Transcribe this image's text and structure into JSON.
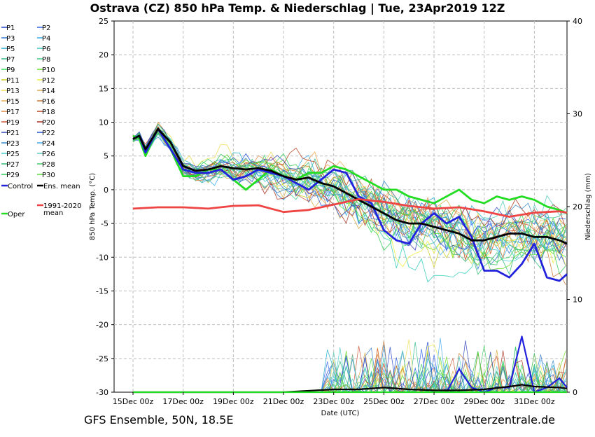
{
  "chart_data": {
    "type": "line",
    "title": "Ostrava  (CZ)  850 hPa Temp. & Niederschlag | Tue, 23Apr2019 12Z",
    "xlabel": "Date (UTC)",
    "ylabel": "850 hPa Temp. (°C)",
    "y2label": "Niederschlag (mm)",
    "ylim": [
      -30,
      25
    ],
    "y2lim": [
      0,
      40
    ],
    "xlim": [
      0,
      17.3
    ],
    "grid": true,
    "legend_position": "left",
    "x_tick_labels": [
      "15Dec 00z",
      "17Dec 00z",
      "19Dec 00z",
      "21Dec 00z",
      "23Dec 00z",
      "25Dec 00z",
      "27Dec 00z",
      "29Dec 00z",
      "31Dec 00z"
    ],
    "x_tick_positions_days": [
      0,
      2,
      4,
      6,
      8,
      10,
      12,
      14,
      16
    ],
    "y_ticks": [
      25,
      20,
      15,
      10,
      5,
      0,
      -5,
      -10,
      -15,
      -20,
      -25,
      -30
    ],
    "y2_ticks": [
      40,
      30,
      20,
      10,
      0
    ],
    "footer_left": "GFS Ensemble, 50N, 18.5E",
    "footer_right": "Wetterzentrale.de",
    "legend": [
      {
        "label": "P1",
        "color": "#2244cc"
      },
      {
        "label": "P2",
        "color": "#3366ee"
      },
      {
        "label": "P3",
        "color": "#3377cc"
      },
      {
        "label": "P4",
        "color": "#33aaee"
      },
      {
        "label": "P5",
        "color": "#22aacc"
      },
      {
        "label": "P6",
        "color": "#33ccbb"
      },
      {
        "label": "P7",
        "color": "#33bb88"
      },
      {
        "label": "P8",
        "color": "#44cc88"
      },
      {
        "label": "P9",
        "color": "#33dd55"
      },
      {
        "label": "P10",
        "color": "#66dd22"
      },
      {
        "label": "P11",
        "color": "#cccc22"
      },
      {
        "label": "P12",
        "color": "#eeee44"
      },
      {
        "label": "P13",
        "color": "#eedd55"
      },
      {
        "label": "P14",
        "color": "#ddaa44"
      },
      {
        "label": "P15",
        "color": "#eeaa55"
      },
      {
        "label": "P16",
        "color": "#cc7733"
      },
      {
        "label": "P17",
        "color": "#dd8844"
      },
      {
        "label": "P18",
        "color": "#bb4422"
      },
      {
        "label": "P19",
        "color": "#cc5533"
      },
      {
        "label": "P20",
        "color": "#aa3322"
      },
      {
        "label": "P21",
        "color": "#3344bb"
      },
      {
        "label": "P22",
        "color": "#2255dd"
      },
      {
        "label": "P23",
        "color": "#3388cc"
      },
      {
        "label": "P24",
        "color": "#44aaee"
      },
      {
        "label": "P25",
        "color": "#44cccc"
      },
      {
        "label": "P26",
        "color": "#55ccbb"
      },
      {
        "label": "P27",
        "color": "#33bb77"
      },
      {
        "label": "P28",
        "color": "#44cc66"
      },
      {
        "label": "P29",
        "color": "#33cc55"
      },
      {
        "label": "P30",
        "color": "#55dd33"
      },
      {
        "label": "Control",
        "color": "#2222dd"
      },
      {
        "label": "Ens. mean",
        "color": "#000000"
      },
      {
        "label": "1991-2020 mean",
        "color": "#ee4444"
      },
      {
        "label": "Oper",
        "color": "#22dd22"
      }
    ],
    "series": [
      {
        "name": "Oper",
        "color": "#22dd22",
        "x": [
          0,
          0.25,
          0.5,
          1,
          1.5,
          2,
          2.5,
          3,
          3.5,
          4,
          4.5,
          5,
          5.5,
          6,
          6.5,
          7,
          7.5,
          8,
          8.5,
          9,
          9.5,
          10,
          10.5,
          11,
          11.5,
          12,
          12.5,
          13,
          13.5,
          14,
          14.5,
          15,
          15.5,
          16,
          16.5,
          17,
          17.3
        ],
        "values": [
          8,
          7.5,
          5,
          9,
          6,
          2,
          2,
          3,
          3,
          1.5,
          0,
          1.5,
          3,
          2,
          1.5,
          2.5,
          2.5,
          3.5,
          3,
          2,
          1,
          0,
          0,
          -1,
          -1.5,
          -2,
          -1,
          0,
          -1.5,
          -2,
          -1,
          -1.5,
          -1,
          -1.5,
          -2.5,
          -3,
          -3.5
        ]
      },
      {
        "name": "Control",
        "color": "#2222dd",
        "x": [
          0,
          0.25,
          0.5,
          1,
          1.5,
          2,
          2.5,
          3,
          3.5,
          4,
          4.5,
          5,
          5.5,
          6,
          6.5,
          7,
          7.5,
          8,
          8.5,
          9,
          9.5,
          10,
          10.5,
          11,
          11.5,
          12,
          12.5,
          13,
          13.5,
          14,
          14.5,
          15,
          15.5,
          16,
          16.5,
          17,
          17.3
        ],
        "values": [
          7.5,
          8,
          5.5,
          9,
          6,
          3,
          2.5,
          2.5,
          3,
          1.5,
          2,
          3,
          2.5,
          2,
          1,
          0,
          1.5,
          3,
          2.5,
          -1,
          -2,
          -6,
          -7.5,
          -8,
          -5,
          -3.5,
          -5,
          -4,
          -7,
          -12,
          -12,
          -13,
          -11,
          -8,
          -13,
          -13.5,
          -12.5
        ]
      },
      {
        "name": "Ens. mean",
        "color": "#000000",
        "x": [
          0,
          0.25,
          0.5,
          1,
          1.5,
          2,
          2.5,
          3,
          3.5,
          4,
          4.5,
          5,
          5.5,
          6,
          6.5,
          7,
          7.5,
          8,
          8.5,
          9,
          9.5,
          10,
          10.5,
          11,
          11.5,
          12,
          12.5,
          13,
          13.5,
          14,
          14.5,
          15,
          15.5,
          16,
          16.5,
          17,
          17.3
        ],
        "values": [
          7.5,
          8,
          6,
          9,
          7,
          3.5,
          2.8,
          3,
          3.5,
          3.2,
          3,
          3.2,
          2.8,
          2,
          1.5,
          1.8,
          1,
          0.5,
          -0.5,
          -1.5,
          -2.5,
          -3.5,
          -4.5,
          -5,
          -5,
          -5.5,
          -6,
          -6.5,
          -7.5,
          -7.5,
          -7,
          -6.5,
          -6.5,
          -7,
          -7,
          -7.5,
          -8
        ]
      },
      {
        "name": "1991-2020 mean",
        "color": "#ee4444",
        "x": [
          0,
          1,
          2,
          3,
          4,
          5,
          6,
          7,
          8,
          9,
          10,
          11,
          12,
          13,
          14,
          15,
          16,
          17,
          17.3
        ],
        "values": [
          -2.8,
          -2.6,
          -2.6,
          -2.8,
          -2.4,
          -2.3,
          -3.3,
          -3,
          -2.2,
          -1.4,
          -1.8,
          -2.4,
          -2.8,
          -2.6,
          -3.2,
          -4,
          -3.4,
          -3.2,
          -3.4
        ]
      }
    ],
    "precipitation_mm": [
      {
        "name": "Control",
        "color": "#2222dd",
        "x": [
          12.5,
          13,
          13.5,
          14,
          14.5,
          15,
          15.5,
          16,
          16.5,
          17,
          17.3
        ],
        "values": [
          0,
          2.5,
          0.5,
          0,
          0.5,
          0.5,
          6,
          0,
          0.5,
          1.5,
          0.5
        ]
      },
      {
        "name": "Ens. mean",
        "color": "#000000",
        "x": [
          0,
          2,
          4,
          6,
          8,
          9,
          10,
          11,
          12,
          13,
          14,
          15,
          15.5,
          16,
          17,
          17.3
        ],
        "values": [
          0,
          0,
          0,
          0,
          0.3,
          0.3,
          0.5,
          0.3,
          0.2,
          0.2,
          0.3,
          0.6,
          0.8,
          0.6,
          0.5,
          0.4
        ]
      },
      {
        "name": "Oper",
        "color": "#22dd22",
        "x": [
          0,
          17.3
        ],
        "values": [
          0,
          0
        ]
      }
    ]
  }
}
